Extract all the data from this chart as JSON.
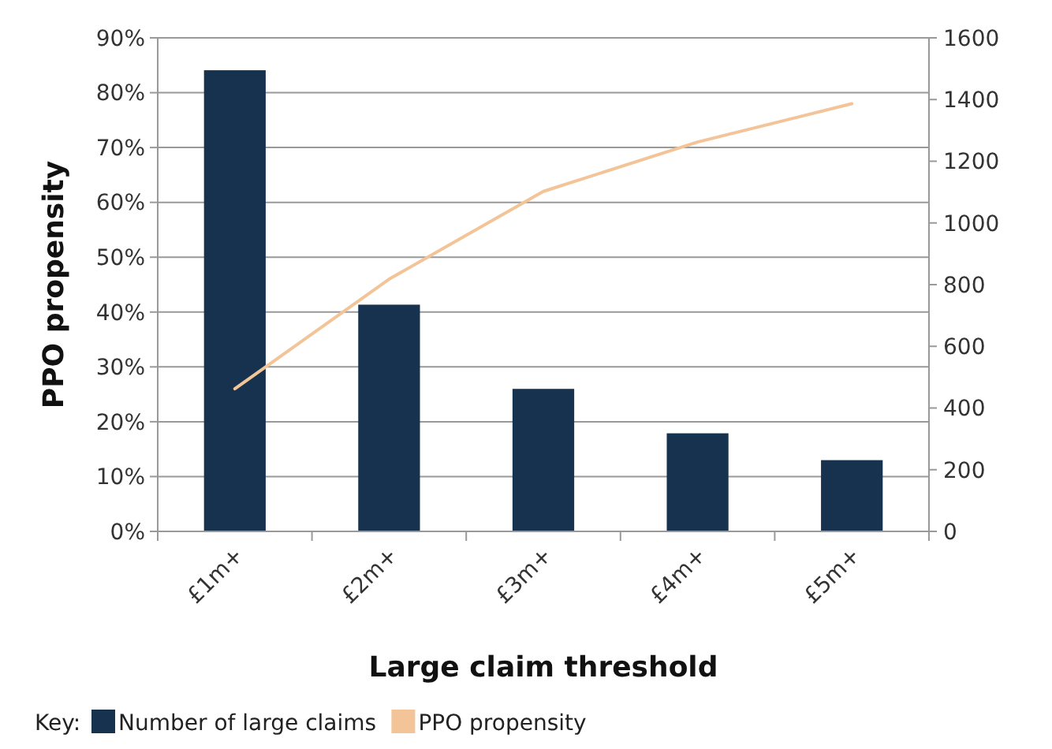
{
  "chart_data": {
    "type": "bar",
    "categories": [
      "£1m+",
      "£2m+",
      "£3m+",
      "£4m+",
      "£5m+"
    ],
    "series": [
      {
        "name": "Number of large claims",
        "axis": "y2",
        "color": "#17324f",
        "values": [
          1495,
          735,
          462,
          318,
          231
        ]
      },
      {
        "name": "PPO propensity",
        "type": "line",
        "color": "#f2c497",
        "values": [
          0.26,
          0.46,
          0.62,
          0.71,
          0.78
        ]
      }
    ],
    "xlabel": "Large claim threshold",
    "ylabel": "PPO propensity",
    "legend_title": "Key:",
    "ylim": [
      0,
      0.9
    ],
    "yticks": [
      {
        "value": 0,
        "label": "0%"
      },
      {
        "value": 0.1,
        "label": "10%"
      },
      {
        "value": 0.2,
        "label": "20%"
      },
      {
        "value": 0.3,
        "label": "30%"
      },
      {
        "value": 0.4,
        "label": "40%"
      },
      {
        "value": 0.5,
        "label": "50%"
      },
      {
        "value": 0.6,
        "label": "60%"
      },
      {
        "value": 0.7,
        "label": "70%"
      },
      {
        "value": 0.8,
        "label": "80%"
      },
      {
        "value": 0.9,
        "label": "90%"
      }
    ],
    "y2lim": [
      0,
      1600
    ],
    "y2ticks": [
      0,
      200,
      400,
      600,
      800,
      1000,
      1200,
      1400,
      1600
    ],
    "grid": "y",
    "legend": "bottom left"
  }
}
